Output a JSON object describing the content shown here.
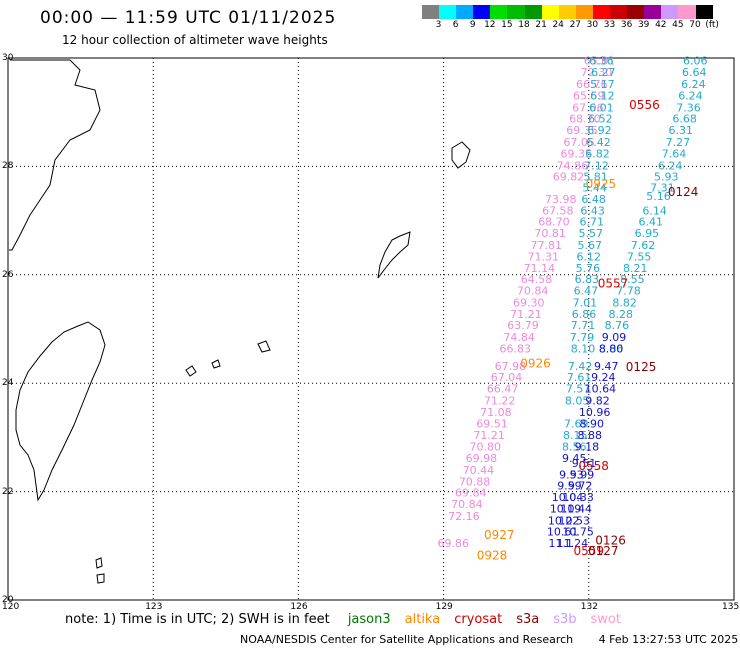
{
  "title": "00:00 — 11:59 UTC 01/11/2025",
  "subtitle": "12 hour collection of altimeter wave heights",
  "color_scale": {
    "colors": [
      "#808080",
      "#00ffff",
      "#00aaff",
      "#0000ff",
      "#00dd00",
      "#00bb00",
      "#009900",
      "#ffff00",
      "#ffcc00",
      "#ff9900",
      "#ff0000",
      "#cc0000",
      "#990000",
      "#990099",
      "#cc99ff",
      "#ff99cc",
      "#000000"
    ],
    "labels": [
      "3",
      "6",
      "9",
      "12",
      "15",
      "18",
      "21",
      "24",
      "27",
      "30",
      "33",
      "36",
      "39",
      "42",
      "45",
      "70",
      "(ft)"
    ]
  },
  "axes": {
    "lat_labels": [
      "30",
      "28",
      "26",
      "24",
      "22",
      "20"
    ],
    "lon_labels": [
      "120",
      "123",
      "126",
      "129",
      "132",
      "135"
    ]
  },
  "legend": {
    "note": "note: 1) Time is in UTC; 2) SWH is in feet",
    "satellites": [
      {
        "name": "jason3",
        "color": "#007700"
      },
      {
        "name": "altika",
        "color": "#ff8800"
      },
      {
        "name": "cryosat",
        "color": "#cc0000"
      },
      {
        "name": "s3a",
        "color": "#880000"
      },
      {
        "name": "s3b",
        "color": "#cc99ff"
      },
      {
        "name": "swot",
        "color": "#ff99cc"
      }
    ]
  },
  "footer": {
    "credit": "NOAA/NESDIS Center for Satellite Applications and Research",
    "timestamp": "4 Feb 13:27:53 UTC 2025"
  },
  "tracks": [
    {
      "name": "swot-track",
      "color": "#ee88dd",
      "points": [
        {
          "v": "65.81",
          "lon": 132.22,
          "lat": 29.95
        },
        {
          "v": "72.30",
          "lon": 132.16,
          "lat": 29.74
        },
        {
          "v": "66.76",
          "lon": 132.06,
          "lat": 29.52
        },
        {
          "v": "65.59",
          "lon": 132.0,
          "lat": 29.31
        },
        {
          "v": "67.06",
          "lon": 131.98,
          "lat": 29.09
        },
        {
          "v": "68.70",
          "lon": 131.92,
          "lat": 28.88
        },
        {
          "v": "69.35",
          "lon": 131.86,
          "lat": 28.67
        },
        {
          "v": "67.05",
          "lon": 131.8,
          "lat": 28.45
        },
        {
          "v": "69.35",
          "lon": 131.74,
          "lat": 28.24
        },
        {
          "v": "74.86",
          "lon": 131.66,
          "lat": 28.02
        },
        {
          "v": "69.82",
          "lon": 131.58,
          "lat": 27.81
        },
        {
          "v": "73.98",
          "lon": 131.42,
          "lat": 27.4
        },
        {
          "v": "67.58",
          "lon": 131.36,
          "lat": 27.19
        },
        {
          "v": "68.70",
          "lon": 131.28,
          "lat": 26.98
        },
        {
          "v": "70.81",
          "lon": 131.2,
          "lat": 26.77
        },
        {
          "v": "77.81",
          "lon": 131.12,
          "lat": 26.55
        },
        {
          "v": "71.31",
          "lon": 131.06,
          "lat": 26.34
        },
        {
          "v": "71.14",
          "lon": 130.98,
          "lat": 26.13
        },
        {
          "v": "64.58",
          "lon": 130.92,
          "lat": 25.92
        },
        {
          "v": "70.84",
          "lon": 130.84,
          "lat": 25.71
        },
        {
          "v": "69.30",
          "lon": 130.76,
          "lat": 25.49
        },
        {
          "v": "71.21",
          "lon": 130.7,
          "lat": 25.28
        },
        {
          "v": "63.79",
          "lon": 130.64,
          "lat": 25.07
        },
        {
          "v": "74.84",
          "lon": 130.56,
          "lat": 24.85
        },
        {
          "v": "66.83",
          "lon": 130.48,
          "lat": 24.64
        },
        {
          "v": "67.98",
          "lon": 130.38,
          "lat": 24.32
        },
        {
          "v": "67.04",
          "lon": 130.3,
          "lat": 24.11
        },
        {
          "v": "66.47",
          "lon": 130.22,
          "lat": 23.9
        },
        {
          "v": "71.22",
          "lon": 130.16,
          "lat": 23.68
        },
        {
          "v": "71.08",
          "lon": 130.08,
          "lat": 23.47
        },
        {
          "v": "69.51",
          "lon": 130.0,
          "lat": 23.26
        },
        {
          "v": "71.21",
          "lon": 129.94,
          "lat": 23.04
        },
        {
          "v": "70.80",
          "lon": 129.86,
          "lat": 22.83
        },
        {
          "v": "69.98",
          "lon": 129.78,
          "lat": 22.62
        },
        {
          "v": "70.44",
          "lon": 129.72,
          "lat": 22.4
        },
        {
          "v": "70.88",
          "lon": 129.64,
          "lat": 22.19
        },
        {
          "v": "69.84",
          "lon": 129.56,
          "lat": 21.98
        },
        {
          "v": "70.84",
          "lon": 129.48,
          "lat": 21.77
        },
        {
          "v": "72.16",
          "lon": 129.42,
          "lat": 21.55
        },
        {
          "v": "69.86",
          "lon": 129.2,
          "lat": 21.05
        }
      ]
    },
    {
      "name": "cyan-track-a",
      "color": "#22aacc",
      "points": [
        {
          "v": "6.36",
          "lon": 132.26,
          "lat": 29.95
        },
        {
          "v": "6.27",
          "lon": 132.3,
          "lat": 29.74
        },
        {
          "v": "5.17",
          "lon": 132.28,
          "lat": 29.52
        },
        {
          "v": "6.12",
          "lon": 132.28,
          "lat": 29.31
        },
        {
          "v": "6.01",
          "lon": 132.26,
          "lat": 29.09
        },
        {
          "v": "6.52",
          "lon": 132.24,
          "lat": 28.88
        },
        {
          "v": "6.92",
          "lon": 132.22,
          "lat": 28.67
        },
        {
          "v": "6.42",
          "lon": 132.2,
          "lat": 28.45
        },
        {
          "v": "6.82",
          "lon": 132.18,
          "lat": 28.24
        },
        {
          "v": "7.12",
          "lon": 132.16,
          "lat": 28.02
        },
        {
          "v": "5.81",
          "lon": 132.14,
          "lat": 27.81
        },
        {
          "v": "5.44",
          "lon": 132.12,
          "lat": 27.61
        },
        {
          "v": "6.48",
          "lon": 132.1,
          "lat": 27.4
        },
        {
          "v": "6.43",
          "lon": 132.08,
          "lat": 27.19
        },
        {
          "v": "6.71",
          "lon": 132.06,
          "lat": 26.98
        },
        {
          "v": "5.57",
          "lon": 132.04,
          "lat": 26.77
        },
        {
          "v": "5.67",
          "lon": 132.02,
          "lat": 26.55
        },
        {
          "v": "6.12",
          "lon": 132.0,
          "lat": 26.34
        },
        {
          "v": "5.76",
          "lon": 131.98,
          "lat": 26.13
        },
        {
          "v": "6.83",
          "lon": 131.96,
          "lat": 25.92
        },
        {
          "v": "6.47",
          "lon": 131.94,
          "lat": 25.71
        },
        {
          "v": "7.01",
          "lon": 131.92,
          "lat": 25.49
        },
        {
          "v": "6.86",
          "lon": 131.9,
          "lat": 25.28
        },
        {
          "v": "7.71",
          "lon": 131.88,
          "lat": 25.07
        },
        {
          "v": "7.79",
          "lon": 131.86,
          "lat": 24.85
        },
        {
          "v": "7.42",
          "lon": 131.82,
          "lat": 24.32
        },
        {
          "v": "7.61",
          "lon": 131.8,
          "lat": 24.11
        },
        {
          "v": "7.57",
          "lon": 131.78,
          "lat": 23.9
        },
        {
          "v": "8.05",
          "lon": 131.76,
          "lat": 23.68
        },
        {
          "v": "7.69",
          "lon": 131.74,
          "lat": 23.26
        },
        {
          "v": "8.15",
          "lon": 131.72,
          "lat": 23.04
        },
        {
          "v": "8.56",
          "lon": 131.7,
          "lat": 22.83
        }
      ]
    },
    {
      "name": "cyan-track-b",
      "color": "#22aacc",
      "points": [
        {
          "v": "6.06",
          "lon": 134.2,
          "lat": 29.95
        },
        {
          "v": "6.64",
          "lon": 134.18,
          "lat": 29.74
        },
        {
          "v": "6.24",
          "lon": 134.16,
          "lat": 29.52
        },
        {
          "v": "6.24",
          "lon": 134.1,
          "lat": 29.31
        },
        {
          "v": "7.36",
          "lon": 134.06,
          "lat": 29.09
        },
        {
          "v": "6.68",
          "lon": 133.98,
          "lat": 28.88
        },
        {
          "v": "6.31",
          "lon": 133.9,
          "lat": 28.67
        },
        {
          "v": "7.27",
          "lon": 133.84,
          "lat": 28.45
        },
        {
          "v": "7.64",
          "lon": 133.76,
          "lat": 28.24
        },
        {
          "v": "6.24",
          "lon": 133.68,
          "lat": 28.02
        },
        {
          "v": "5.93",
          "lon": 133.6,
          "lat": 27.81
        },
        {
          "v": "7.31",
          "lon": 133.52,
          "lat": 27.61
        },
        {
          "v": "5.16",
          "lon": 133.44,
          "lat": 27.45
        },
        {
          "v": "6.14",
          "lon": 133.36,
          "lat": 27.19
        },
        {
          "v": "6.41",
          "lon": 133.28,
          "lat": 26.98
        },
        {
          "v": "6.95",
          "lon": 133.2,
          "lat": 26.77
        },
        {
          "v": "7.62",
          "lon": 133.12,
          "lat": 26.55
        },
        {
          "v": "7.55",
          "lon": 133.04,
          "lat": 26.34
        },
        {
          "v": "8.21",
          "lon": 132.96,
          "lat": 26.13
        },
        {
          "v": "8.55",
          "lon": 132.9,
          "lat": 25.92
        },
        {
          "v": "7.78",
          "lon": 132.82,
          "lat": 25.71
        },
        {
          "v": "8.82",
          "lon": 132.74,
          "lat": 25.49
        },
        {
          "v": "8.28",
          "lon": 132.66,
          "lat": 25.28
        },
        {
          "v": "8.76",
          "lon": 132.58,
          "lat": 25.07
        },
        {
          "v": "8.06",
          "lon": 132.46,
          "lat": 24.64
        },
        {
          "v": "8.10",
          "lon": 131.88,
          "lat": 24.64
        }
      ]
    },
    {
      "name": "blue-track",
      "color": "#1111cc",
      "points": [
        {
          "v": "9.09",
          "lon": 132.52,
          "lat": 24.85
        },
        {
          "v": "8.80",
          "lon": 132.46,
          "lat": 24.64
        },
        {
          "v": "9.47",
          "lon": 132.36,
          "lat": 24.32
        },
        {
          "v": "9.24",
          "lon": 132.3,
          "lat": 24.11
        },
        {
          "v": "10.64",
          "lon": 132.24,
          "lat": 23.9
        },
        {
          "v": "9.82",
          "lon": 132.18,
          "lat": 23.68
        },
        {
          "v": "10.96",
          "lon": 132.12,
          "lat": 23.47
        },
        {
          "v": "8.90",
          "lon": 132.06,
          "lat": 23.26
        },
        {
          "v": "8.88",
          "lon": 132.02,
          "lat": 23.04
        },
        {
          "v": "9.18",
          "lon": 131.96,
          "lat": 22.83
        },
        {
          "v": "9.45",
          "lon": 131.7,
          "lat": 22.62
        },
        {
          "v": "9.51",
          "lon": 131.9,
          "lat": 22.53
        },
        {
          "v": "9.99",
          "lon": 131.86,
          "lat": 22.32
        },
        {
          "v": "9.53",
          "lon": 131.64,
          "lat": 22.32
        },
        {
          "v": "9.72",
          "lon": 131.82,
          "lat": 22.11
        },
        {
          "v": "9.59",
          "lon": 131.6,
          "lat": 22.11
        },
        {
          "v": "10.04",
          "lon": 131.56,
          "lat": 21.9
        },
        {
          "v": "10.33",
          "lon": 131.78,
          "lat": 21.9
        },
        {
          "v": "10.19",
          "lon": 131.52,
          "lat": 21.69
        },
        {
          "v": "10.44",
          "lon": 131.74,
          "lat": 21.69
        },
        {
          "v": "10.22",
          "lon": 131.48,
          "lat": 21.47
        },
        {
          "v": "10.53",
          "lon": 131.7,
          "lat": 21.47
        },
        {
          "v": "10.61",
          "lon": 131.46,
          "lat": 21.26
        },
        {
          "v": "10.75",
          "lon": 131.78,
          "lat": 21.26
        },
        {
          "v": "11.1",
          "lon": 131.42,
          "lat": 21.05
        },
        {
          "v": "11.24",
          "lon": 131.66,
          "lat": 21.05
        }
      ]
    }
  ],
  "sat_labels": [
    {
      "v": "0556",
      "color": "#dd0000",
      "lon": 133.15,
      "lat": 29.15
    },
    {
      "v": "0925",
      "color": "#ff8800",
      "lon": 132.25,
      "lat": 27.69
    },
    {
      "v": "0124",
      "color": "#880000",
      "lon": 133.95,
      "lat": 27.55
    },
    {
      "v": "0557",
      "color": "#dd0000",
      "lon": 132.5,
      "lat": 25.86
    },
    {
      "v": "0926",
      "color": "#ff8800",
      "lon": 130.9,
      "lat": 24.38
    },
    {
      "v": "0125",
      "color": "#880000",
      "lon": 133.08,
      "lat": 24.32
    },
    {
      "v": "0558",
      "color": "#dd0000",
      "lon": 132.1,
      "lat": 22.49
    },
    {
      "v": "0927",
      "color": "#ff8800",
      "lon": 130.15,
      "lat": 21.22
    },
    {
      "v": "0126",
      "color": "#880000",
      "lon": 132.45,
      "lat": 21.12
    },
    {
      "v": "0928",
      "color": "#ff8800",
      "lon": 130.0,
      "lat": 20.84
    },
    {
      "v": "0559",
      "color": "#dd0000",
      "lon": 132.0,
      "lat": 20.92
    },
    {
      "v": "0127",
      "color": "#880000",
      "lon": 132.3,
      "lat": 20.92
    }
  ]
}
